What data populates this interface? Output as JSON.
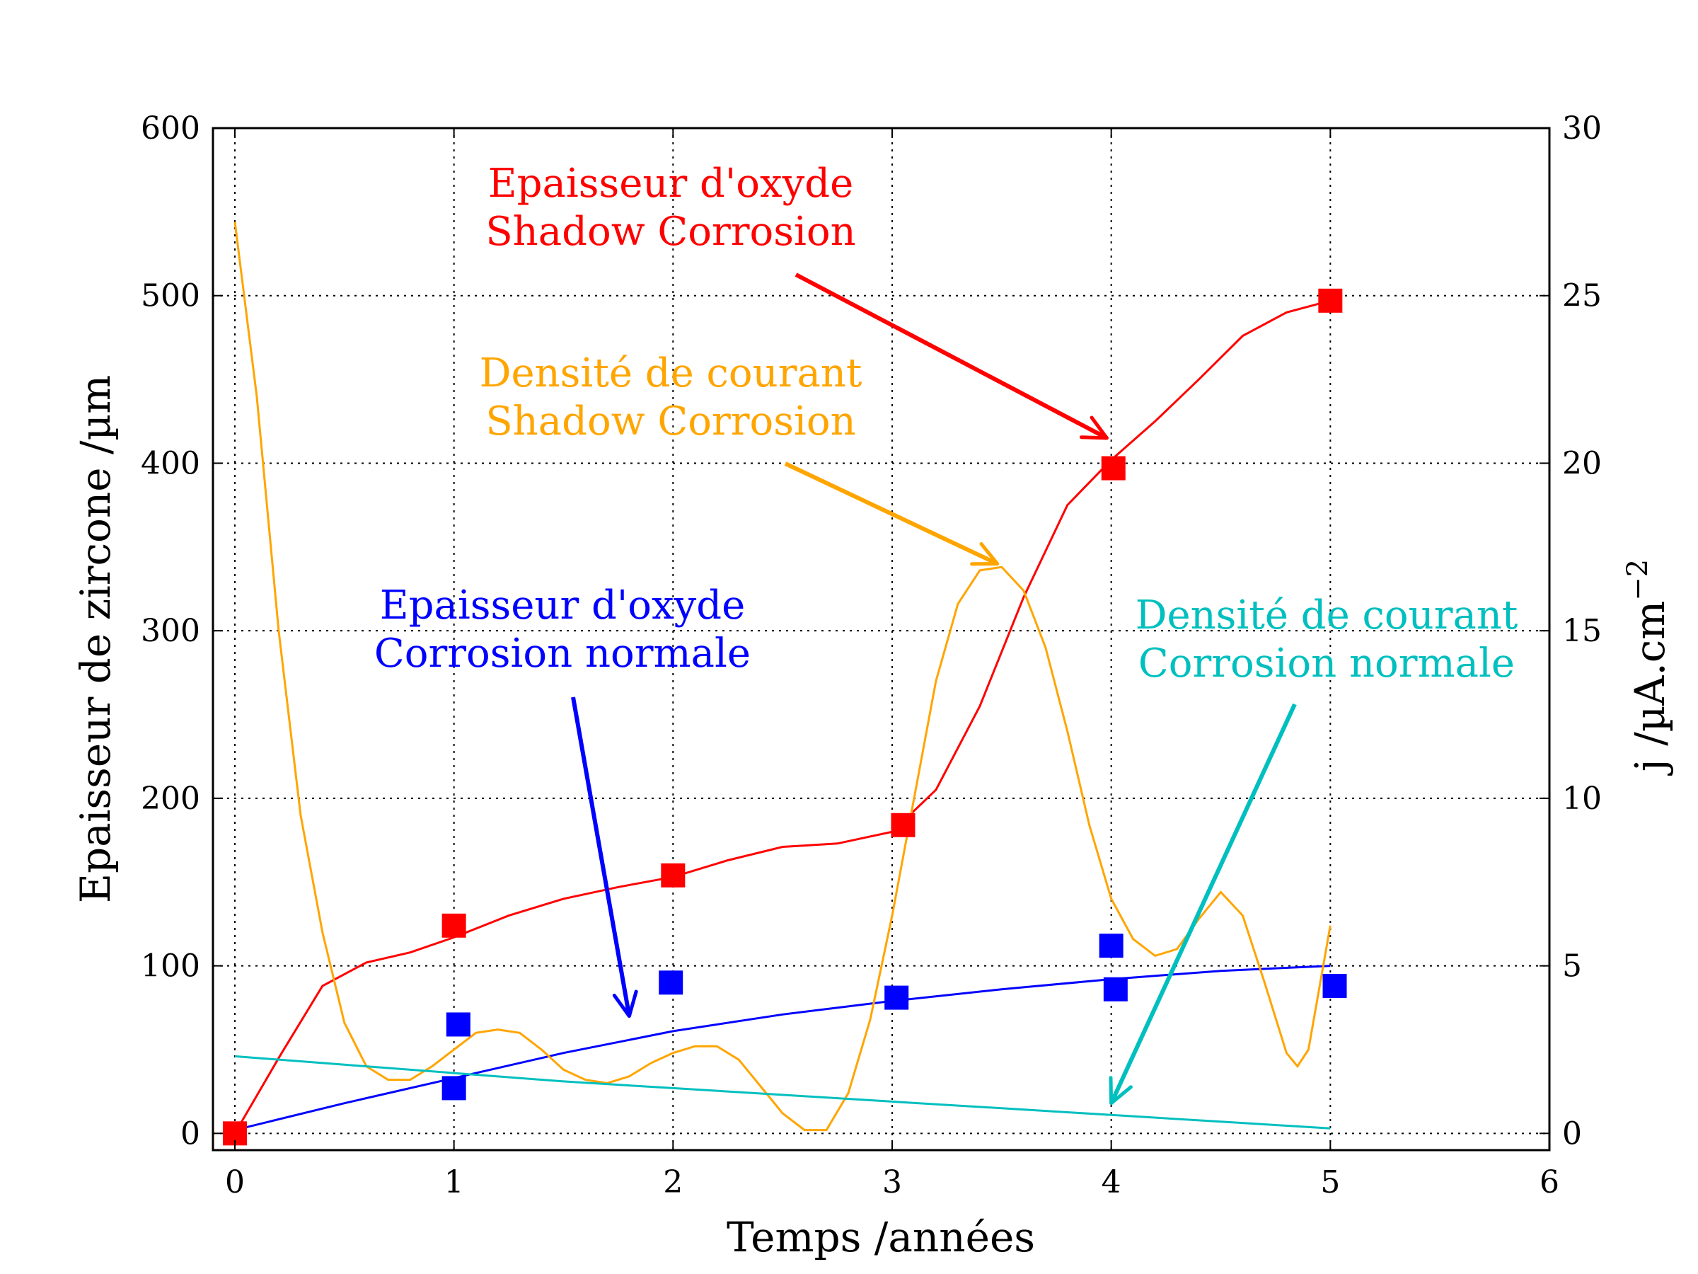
{
  "chart_data": {
    "type": "scatter",
    "xlabel": "Temps /années",
    "ylabel": "Epaisseur de zircone /µm",
    "y2label": "j /µA.cm",
    "y2label_exponent": "−2",
    "xlim": [
      -0.1,
      6
    ],
    "ylim": [
      -10,
      600
    ],
    "y2lim": [
      -0.5,
      30
    ],
    "xticks": [
      "0",
      "1",
      "2",
      "3",
      "4",
      "5",
      "6"
    ],
    "yticks": [
      "0",
      "100",
      "200",
      "300",
      "400",
      "500",
      "600"
    ],
    "y2ticks": [
      "0",
      "5",
      "10",
      "15",
      "20",
      "25",
      "30"
    ],
    "grid": true,
    "colors": {
      "shadow_oxide": "#ff0000",
      "normal_oxide": "#0000ff",
      "shadow_current": "#ffa500",
      "normal_current": "#00bfbf"
    },
    "series": [
      {
        "color_key": "shadow_oxide",
        "axis": "left",
        "markers": [
          [
            0,
            0
          ],
          [
            1,
            124
          ],
          [
            2,
            154
          ],
          [
            3.05,
            184
          ],
          [
            4.01,
            397
          ],
          [
            5,
            497
          ]
        ],
        "curve": [
          [
            0,
            0
          ],
          [
            0.2,
            45
          ],
          [
            0.4,
            88
          ],
          [
            0.6,
            102
          ],
          [
            0.8,
            108
          ],
          [
            1,
            117
          ],
          [
            1.25,
            130
          ],
          [
            1.5,
            140
          ],
          [
            1.75,
            147
          ],
          [
            2,
            153
          ],
          [
            2.25,
            163
          ],
          [
            2.5,
            171
          ],
          [
            2.75,
            173
          ],
          [
            3,
            180
          ],
          [
            3.2,
            205
          ],
          [
            3.4,
            255
          ],
          [
            3.6,
            320
          ],
          [
            3.8,
            375
          ],
          [
            4,
            402
          ],
          [
            4.2,
            425
          ],
          [
            4.4,
            450
          ],
          [
            4.6,
            476
          ],
          [
            4.8,
            490
          ],
          [
            5,
            497
          ]
        ]
      },
      {
        "color_key": "normal_oxide",
        "axis": "left",
        "markers": [
          [
            1.02,
            65
          ],
          [
            1,
            27
          ],
          [
            1.99,
            90
          ],
          [
            3.02,
            81
          ],
          [
            4,
            112
          ],
          [
            4.02,
            86
          ],
          [
            5.02,
            88
          ]
        ],
        "curve": [
          [
            0,
            2
          ],
          [
            0.5,
            18
          ],
          [
            1,
            33
          ],
          [
            1.5,
            48
          ],
          [
            2,
            61
          ],
          [
            2.5,
            71
          ],
          [
            3,
            79
          ],
          [
            3.5,
            86
          ],
          [
            4,
            92
          ],
          [
            4.5,
            97
          ],
          [
            5,
            100
          ]
        ]
      },
      {
        "color_key": "shadow_current",
        "axis": "right",
        "curve": [
          [
            0,
            27.2
          ],
          [
            0.1,
            22
          ],
          [
            0.2,
            15
          ],
          [
            0.3,
            9.5
          ],
          [
            0.4,
            6
          ],
          [
            0.5,
            3.3
          ],
          [
            0.6,
            2
          ],
          [
            0.7,
            1.6
          ],
          [
            0.8,
            1.6
          ],
          [
            0.9,
            2
          ],
          [
            1,
            2.5
          ],
          [
            1.1,
            3
          ],
          [
            1.2,
            3.1
          ],
          [
            1.3,
            3
          ],
          [
            1.4,
            2.5
          ],
          [
            1.5,
            1.9
          ],
          [
            1.6,
            1.6
          ],
          [
            1.7,
            1.5
          ],
          [
            1.8,
            1.7
          ],
          [
            1.9,
            2.1
          ],
          [
            2,
            2.4
          ],
          [
            2.1,
            2.6
          ],
          [
            2.2,
            2.6
          ],
          [
            2.3,
            2.2
          ],
          [
            2.4,
            1.4
          ],
          [
            2.5,
            0.6
          ],
          [
            2.6,
            0.1
          ],
          [
            2.7,
            0.1
          ],
          [
            2.8,
            1.2
          ],
          [
            2.9,
            3.4
          ],
          [
            3,
            6.5
          ],
          [
            3.1,
            10
          ],
          [
            3.2,
            13.5
          ],
          [
            3.3,
            15.8
          ],
          [
            3.4,
            16.8
          ],
          [
            3.5,
            16.9
          ],
          [
            3.6,
            16.2
          ],
          [
            3.7,
            14.5
          ],
          [
            3.8,
            12
          ],
          [
            3.9,
            9.2
          ],
          [
            4,
            7
          ],
          [
            4.1,
            5.8
          ],
          [
            4.2,
            5.3
          ],
          [
            4.3,
            5.5
          ],
          [
            4.4,
            6.4
          ],
          [
            4.5,
            7.2
          ],
          [
            4.6,
            6.5
          ],
          [
            4.7,
            4.5
          ],
          [
            4.8,
            2.4
          ],
          [
            4.85,
            2
          ],
          [
            4.9,
            2.5
          ],
          [
            5,
            6.2
          ]
        ]
      },
      {
        "color_key": "normal_current",
        "axis": "right",
        "curve": [
          [
            0,
            2.3
          ],
          [
            0.5,
            2.05
          ],
          [
            1,
            1.8
          ],
          [
            1.5,
            1.55
          ],
          [
            2,
            1.35
          ],
          [
            2.5,
            1.15
          ],
          [
            3,
            0.95
          ],
          [
            3.5,
            0.75
          ],
          [
            4,
            0.55
          ],
          [
            4.5,
            0.35
          ],
          [
            5,
            0.15
          ]
        ]
      }
    ],
    "annotations": [
      {
        "lines": [
          "Epaisseur d'oxyde",
          "Shadow Corrosion"
        ],
        "color_key": "shadow_oxide",
        "target": [
          3.98,
          415
        ]
      },
      {
        "lines": [
          "Densité de courant",
          "Shadow Corrosion"
        ],
        "color_key": "shadow_current",
        "target": [
          3.48,
          17
        ]
      },
      {
        "lines": [
          "Epaisseur d'oxyde",
          "Corrosion normale"
        ],
        "color_key": "normal_oxide",
        "target": [
          1.8,
          70
        ]
      },
      {
        "lines": [
          "Densité de courant",
          "Corrosion normale"
        ],
        "color_key": "normal_current",
        "target": [
          4.0,
          0.9
        ]
      }
    ]
  }
}
